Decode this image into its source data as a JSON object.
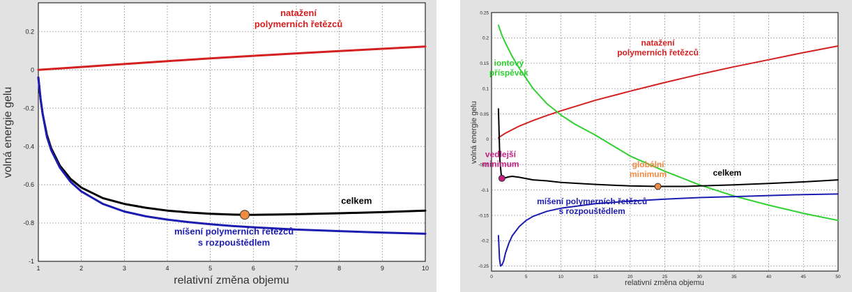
{
  "chart_data": [
    {
      "type": "line",
      "xlabel": "relativní změna objemu",
      "ylabel": "volná energie gelu",
      "xlim": [
        1,
        10
      ],
      "ylim": [
        -1,
        0.35
      ],
      "grid": true,
      "xticks": [
        1,
        2,
        3,
        4,
        5,
        6,
        7,
        8,
        9,
        10
      ],
      "yticks": [
        0.2,
        0,
        -0.2,
        -0.4,
        -0.6,
        -0.8,
        -1
      ],
      "ytick_labels": [
        "0.2",
        "0",
        "-0.2",
        "-0.4",
        "-0.6",
        "-0.8",
        "-1"
      ],
      "series": [
        {
          "key": "stretch",
          "color": "#d42020",
          "x": [
            1,
            2,
            3,
            4,
            5,
            6,
            7,
            8,
            9,
            10
          ],
          "y": [
            0,
            0.015,
            0.03,
            0.045,
            0.06,
            0.073,
            0.086,
            0.098,
            0.11,
            0.122
          ]
        },
        {
          "key": "total",
          "color": "#000000",
          "x": [
            1,
            1.05,
            1.1,
            1.2,
            1.3,
            1.5,
            1.75,
            2,
            2.5,
            3,
            3.5,
            4,
            4.5,
            5,
            5.5,
            5.8,
            6,
            6.5,
            7,
            8,
            9,
            10
          ],
          "y": [
            -0.04,
            -0.15,
            -0.23,
            -0.34,
            -0.41,
            -0.5,
            -0.57,
            -0.615,
            -0.67,
            -0.7,
            -0.72,
            -0.735,
            -0.745,
            -0.752,
            -0.756,
            -0.757,
            -0.757,
            -0.756,
            -0.754,
            -0.749,
            -0.743,
            -0.735
          ]
        },
        {
          "key": "mixing",
          "color": "#1c1cb0",
          "x": [
            1,
            1.05,
            1.1,
            1.2,
            1.3,
            1.5,
            1.75,
            2,
            2.5,
            3,
            3.5,
            4,
            4.5,
            5,
            5.5,
            6,
            6.5,
            7,
            8,
            9,
            10
          ],
          "y": [
            -0.04,
            -0.15,
            -0.23,
            -0.35,
            -0.42,
            -0.51,
            -0.585,
            -0.635,
            -0.7,
            -0.74,
            -0.765,
            -0.782,
            -0.795,
            -0.806,
            -0.815,
            -0.822,
            -0.828,
            -0.834,
            -0.842,
            -0.85,
            -0.856
          ]
        }
      ],
      "annotations": [
        {
          "key": "stretch_label",
          "lines": [
            "natažení",
            "polymerních řetězců"
          ],
          "color": "#d42020",
          "x": 7.05,
          "y": 0.28
        },
        {
          "key": "total_label",
          "lines": [
            "celkem"
          ],
          "color": "#000000",
          "x": 8.4,
          "y": -0.7
        },
        {
          "key": "mixing_label",
          "lines": [
            "míšení polymerních řetězců",
            "s rozpouštědlem"
          ],
          "color": "#1c1cb0",
          "x": 5.55,
          "y": -0.86
        }
      ],
      "markers": [
        {
          "key": "global_min",
          "x": 5.8,
          "y": -0.757,
          "color": "#f08a40"
        }
      ]
    },
    {
      "type": "line",
      "xlabel": "relativní změna objemu",
      "ylabel": "volná energie gelu",
      "xlim": [
        0,
        50
      ],
      "ylim": [
        -0.26,
        0.25
      ],
      "grid": true,
      "xticks": [
        0,
        5,
        10,
        15,
        20,
        25,
        30,
        35,
        40,
        45,
        50
      ],
      "yticks": [
        0.25,
        0.2,
        0.15,
        0.1,
        0.05,
        0,
        -0.05,
        -0.1,
        -0.15,
        -0.2,
        -0.25
      ],
      "ytick_labels": [
        "0.25",
        "0.2",
        "0.15",
        "0.1",
        "0.05",
        "0",
        "-0.05",
        "-0.1",
        "-0.15",
        "-0.2",
        "-0.25"
      ],
      "series": [
        {
          "key": "stretch",
          "color": "#d42020",
          "x": [
            1,
            2,
            4,
            6,
            8,
            10,
            15,
            20,
            25,
            30,
            35,
            40,
            45,
            50
          ],
          "y": [
            0.003,
            0.012,
            0.026,
            0.037,
            0.047,
            0.056,
            0.077,
            0.095,
            0.112,
            0.128,
            0.143,
            0.157,
            0.171,
            0.184
          ]
        },
        {
          "key": "ionic",
          "color": "#30d030",
          "x": [
            1,
            1.5,
            2,
            3,
            4,
            5,
            6,
            7,
            8,
            10,
            12,
            15,
            20,
            25,
            30,
            35,
            40,
            45,
            50
          ],
          "y": [
            0.225,
            0.205,
            0.19,
            0.163,
            0.14,
            0.12,
            0.1,
            0.085,
            0.07,
            0.048,
            0.03,
            0.008,
            -0.033,
            -0.063,
            -0.09,
            -0.112,
            -0.13,
            -0.146,
            -0.16
          ]
        },
        {
          "key": "total",
          "color": "#000000",
          "x": [
            1,
            1.2,
            1.4,
            1.7,
            2,
            2.5,
            3,
            4,
            6,
            8,
            10,
            15,
            20,
            24,
            28,
            30,
            35,
            40,
            45,
            50
          ],
          "y": [
            0.06,
            -0.04,
            -0.07,
            -0.077,
            -0.076,
            -0.074,
            -0.073,
            -0.075,
            -0.08,
            -0.082,
            -0.085,
            -0.089,
            -0.092,
            -0.093,
            -0.093,
            -0.092,
            -0.09,
            -0.087,
            -0.084,
            -0.08
          ]
        },
        {
          "key": "mixing",
          "color": "#1c1cb0",
          "x": [
            1,
            1.15,
            1.3,
            1.5,
            1.75,
            2,
            2.5,
            3,
            4,
            5,
            6,
            8,
            10,
            15,
            20,
            25,
            30,
            35,
            40,
            45,
            50
          ],
          "y": [
            -0.19,
            -0.235,
            -0.25,
            -0.248,
            -0.24,
            -0.225,
            -0.205,
            -0.19,
            -0.172,
            -0.16,
            -0.152,
            -0.142,
            -0.136,
            -0.127,
            -0.122,
            -0.118,
            -0.115,
            -0.113,
            -0.111,
            -0.109,
            -0.108
          ]
        }
      ],
      "annotations": [
        {
          "key": "stretch_label",
          "lines": [
            "natažení",
            "polymerních řetězců"
          ],
          "color": "#d42020",
          "x": 24,
          "y": 0.185
        },
        {
          "key": "ionic_label",
          "lines": [
            "iontový",
            "příspěvek"
          ],
          "color": "#30d030",
          "x": 2.5,
          "y": 0.145
        },
        {
          "key": "secondary_min_label",
          "lines": [
            "vedlejší",
            "minimum"
          ],
          "color": "#c02080",
          "x": 1.3,
          "y": -0.035
        },
        {
          "key": "global_min_label",
          "lines": [
            "globální",
            "minimum"
          ],
          "color": "#f08a40",
          "x": 22.6,
          "y": -0.055
        },
        {
          "key": "total_label",
          "lines": [
            "celkem"
          ],
          "color": "#000000",
          "x": 34,
          "y": -0.072
        },
        {
          "key": "mixing_label",
          "lines": [
            "míšení polymerních řetězců",
            "s rozpouštědlem"
          ],
          "color": "#1c1cb0",
          "x": 14.5,
          "y": -0.128
        }
      ],
      "markers": [
        {
          "key": "secondary_min",
          "x": 1.5,
          "y": -0.077,
          "color": "#c02080"
        },
        {
          "key": "global_min",
          "x": 24,
          "y": -0.093,
          "color": "#f08a40"
        }
      ]
    }
  ]
}
